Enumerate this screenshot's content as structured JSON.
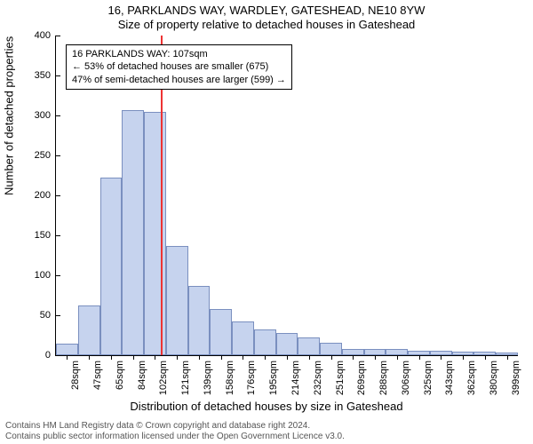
{
  "title": {
    "line1": "16, PARKLANDS WAY, WARDLEY, GATESHEAD, NE10 8YW",
    "line2": "Size of property relative to detached houses in Gateshead"
  },
  "axes": {
    "ylabel": "Number of detached properties",
    "xlabel": "Distribution of detached houses by size in Gateshead",
    "ylim": [
      0,
      400
    ],
    "ytick_step": 50,
    "yticks": [
      0,
      50,
      100,
      150,
      200,
      250,
      300,
      350,
      400
    ],
    "xtick_labels": [
      "28sqm",
      "47sqm",
      "65sqm",
      "84sqm",
      "102sqm",
      "121sqm",
      "139sqm",
      "158sqm",
      "176sqm",
      "195sqm",
      "214sqm",
      "232sqm",
      "251sqm",
      "269sqm",
      "288sqm",
      "306sqm",
      "325sqm",
      "343sqm",
      "362sqm",
      "380sqm",
      "399sqm"
    ],
    "label_fontsize": 13,
    "tick_fontsize": 11
  },
  "chart": {
    "type": "histogram",
    "bar_color": "#c6d3ee",
    "bar_border_color": "#7a8fbf",
    "background_color": "#ffffff",
    "values": [
      14,
      62,
      222,
      307,
      305,
      137,
      87,
      58,
      42,
      32,
      28,
      22,
      16,
      8,
      8,
      8,
      6,
      6,
      5,
      4,
      3
    ],
    "highlight_x": 107,
    "highlight_color": "#ee3333",
    "x_start": 28,
    "x_step": 18.55
  },
  "annotation": {
    "line1": "16 PARKLANDS WAY: 107sqm",
    "line2": "← 53% of detached houses are smaller (675)",
    "line3": "47% of semi-detached houses are larger (599) →",
    "border_color": "#000000",
    "background_color": "#ffffff",
    "fontsize": 11
  },
  "footer": {
    "line1": "Contains HM Land Registry data © Crown copyright and database right 2024.",
    "line2": "Contains public sector information licensed under the Open Government Licence v3.0.",
    "color": "#686868",
    "fontsize": 10
  }
}
